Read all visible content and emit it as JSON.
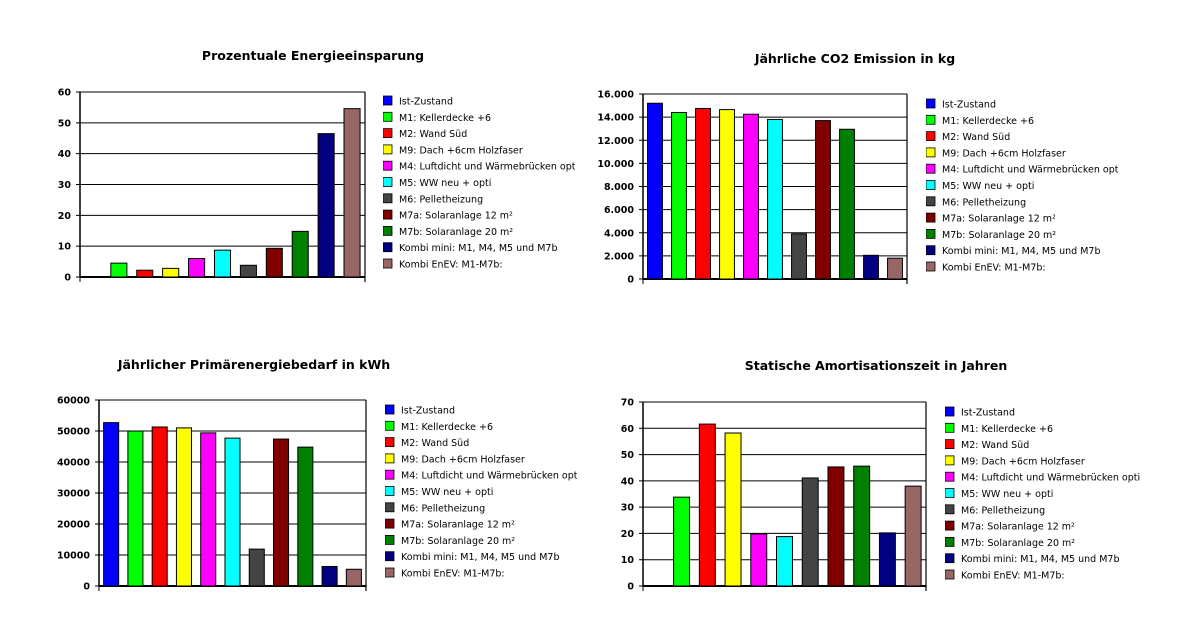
{
  "series_names": [
    "Ist-Zustand",
    "M1: Kellerdecke +6",
    "M2: Wand Süd",
    "M9: Dach +6cm Holzfaser",
    "M4: Luftdicht und Wärmebrücken opti",
    "M5: WW neu + opti",
    "M6: Pelletheizung",
    "M7a: Solaranlage 12 m²",
    "M7b: Solaranlage 20 m²",
    "Kombi mini: M1, M4, M5 und M7b",
    "Kombi EnEV: M1-M7b:"
  ],
  "series_colors": [
    "#0000ff",
    "#00ff00",
    "#ff0000",
    "#ffff00",
    "#ff00ff",
    "#00ffff",
    "#444444",
    "#800000",
    "#008000",
    "#000080",
    "#996666"
  ],
  "chart_data": [
    {
      "type": "bar",
      "title": "Prozentuale Energieeinsparung",
      "xlabel": "",
      "ylabel": "",
      "ylim": [
        0,
        60
      ],
      "yticks": [
        "0",
        "10",
        "20",
        "30",
        "40",
        "50",
        "60"
      ],
      "legend": "right",
      "grid": true,
      "values": [
        0,
        4.5,
        2.2,
        2.8,
        6.0,
        8.7,
        3.8,
        9.3,
        14.8,
        46.5,
        54.6
      ]
    },
    {
      "type": "bar",
      "title": "Jährliche CO2 Emission in kg",
      "xlabel": "",
      "ylabel": "",
      "ylim": [
        0,
        16000
      ],
      "yticks": [
        "0",
        "2.000",
        "4.000",
        "6.000",
        "8.000",
        "10.000",
        "12.000",
        "14.000",
        "16.000"
      ],
      "legend": "right",
      "grid": true,
      "values": [
        15200,
        14400,
        14750,
        14650,
        14250,
        13800,
        3900,
        13700,
        12950,
        2050,
        1800
      ]
    },
    {
      "type": "bar",
      "title": "Jährlicher Primärenergiebedarf in kWh",
      "xlabel": "",
      "ylabel": "",
      "ylim": [
        0,
        60000
      ],
      "yticks": [
        "0",
        "10000",
        "20000",
        "30000",
        "40000",
        "50000",
        "60000"
      ],
      "legend": "right",
      "grid": true,
      "values": [
        52700,
        50000,
        51300,
        51000,
        49400,
        47700,
        11900,
        47400,
        44800,
        6300,
        5400
      ]
    },
    {
      "type": "bar",
      "title": "Statische Amortisationszeit in Jahren",
      "xlabel": "",
      "ylabel": "",
      "ylim": [
        0,
        70
      ],
      "yticks": [
        "0",
        "10",
        "20",
        "30",
        "40",
        "50",
        "60",
        "70"
      ],
      "legend": "right",
      "grid": true,
      "values": [
        0,
        33.8,
        61.6,
        58.2,
        19.8,
        18.8,
        41.1,
        45.3,
        45.6,
        20.2,
        38.0
      ]
    }
  ]
}
